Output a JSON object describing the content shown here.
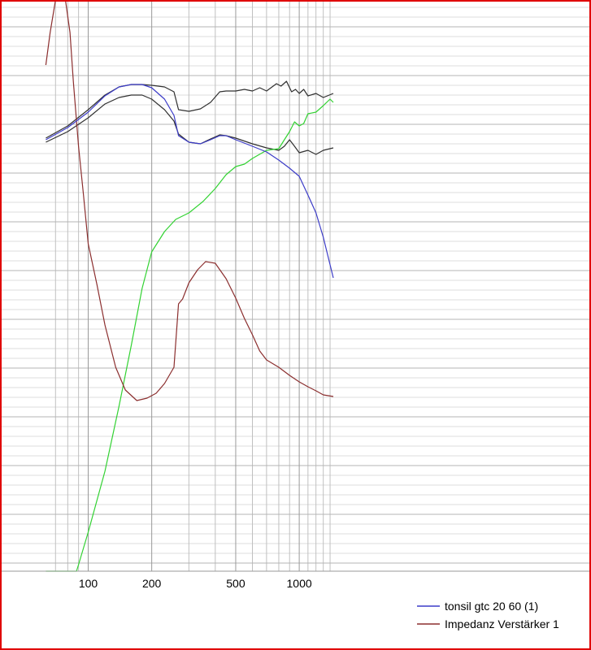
{
  "chart_data": {
    "type": "line",
    "title": "",
    "xlabel": "",
    "ylabel": "",
    "x_scale": "log",
    "xlim": [
      63,
      1450
    ],
    "x_ticks": [
      100,
      200,
      500,
      1000
    ],
    "x_tick_labels": [
      "100",
      "200",
      "500",
      "1000"
    ],
    "grid": true,
    "legend_position": "bottom-right",
    "colors": {
      "frame": "#e00000",
      "grid": "#c0c0c0",
      "blue": "#3c3cc8",
      "darkred": "#8b2e2e",
      "green": "#32d232",
      "black": "#303030"
    },
    "legend": [
      {
        "name": "tonsil gtc 20 60 (1)",
        "color": "#3c3cc8"
      },
      {
        "name": "Impedanz Verstärker 1",
        "color": "#8b2e2e"
      }
    ],
    "series": [
      {
        "name": "tonsil gtc 20 60 (1)",
        "color": "#3c3cc8",
        "points": [
          [
            63,
            172
          ],
          [
            80,
            157
          ],
          [
            100,
            138
          ],
          [
            120,
            118
          ],
          [
            140,
            107
          ],
          [
            160,
            104
          ],
          [
            180,
            104
          ],
          [
            200,
            108
          ],
          [
            230,
            122
          ],
          [
            255,
            142
          ],
          [
            268,
            167
          ],
          [
            300,
            175
          ],
          [
            340,
            177
          ],
          [
            380,
            172
          ],
          [
            420,
            167
          ],
          [
            450,
            167
          ],
          [
            500,
            172
          ],
          [
            600,
            180
          ],
          [
            700,
            187
          ],
          [
            800,
            197
          ],
          [
            900,
            207
          ],
          [
            1000,
            217
          ],
          [
            1100,
            240
          ],
          [
            1200,
            262
          ],
          [
            1300,
            292
          ],
          [
            1450,
            342
          ]
        ]
      },
      {
        "name": "Impedanz Verstärker 1",
        "color": "#8b2e2e",
        "points": [
          [
            63,
            80
          ],
          [
            66,
            40
          ],
          [
            70,
            0
          ],
          [
            78,
            0
          ],
          [
            82,
            40
          ],
          [
            85,
            100
          ],
          [
            90,
            180
          ],
          [
            95,
            240
          ],
          [
            100,
            300
          ],
          [
            110,
            350
          ],
          [
            120,
            400
          ],
          [
            135,
            452
          ],
          [
            150,
            480
          ],
          [
            170,
            493
          ],
          [
            190,
            490
          ],
          [
            210,
            484
          ],
          [
            230,
            472
          ],
          [
            255,
            452
          ],
          [
            268,
            374
          ],
          [
            280,
            368
          ],
          [
            300,
            348
          ],
          [
            330,
            332
          ],
          [
            360,
            322
          ],
          [
            400,
            324
          ],
          [
            450,
            343
          ],
          [
            500,
            367
          ],
          [
            550,
            392
          ],
          [
            600,
            412
          ],
          [
            650,
            432
          ],
          [
            700,
            443
          ],
          [
            800,
            452
          ],
          [
            900,
            462
          ],
          [
            1000,
            470
          ],
          [
            1100,
            476
          ],
          [
            1200,
            481
          ],
          [
            1300,
            486
          ],
          [
            1450,
            488
          ]
        ]
      },
      {
        "name": "",
        "color": "#32d232",
        "points": [
          [
            63,
            703
          ],
          [
            88,
            703
          ],
          [
            90,
            695
          ],
          [
            100,
            655
          ],
          [
            120,
            580
          ],
          [
            140,
            500
          ],
          [
            160,
            425
          ],
          [
            180,
            355
          ],
          [
            200,
            310
          ],
          [
            230,
            285
          ],
          [
            260,
            270
          ],
          [
            300,
            262
          ],
          [
            350,
            248
          ],
          [
            400,
            232
          ],
          [
            450,
            215
          ],
          [
            500,
            205
          ],
          [
            550,
            202
          ],
          [
            600,
            195
          ],
          [
            700,
            185
          ],
          [
            800,
            183
          ],
          [
            850,
            172
          ],
          [
            900,
            162
          ],
          [
            950,
            150
          ],
          [
            1000,
            155
          ],
          [
            1050,
            152
          ],
          [
            1100,
            140
          ],
          [
            1200,
            138
          ],
          [
            1300,
            130
          ],
          [
            1400,
            122
          ],
          [
            1450,
            126
          ]
        ]
      },
      {
        "name": "",
        "color": "#303030",
        "points": [
          [
            63,
            170
          ],
          [
            80,
            155
          ],
          [
            100,
            135
          ],
          [
            120,
            117
          ],
          [
            140,
            107
          ],
          [
            160,
            104
          ],
          [
            180,
            104
          ],
          [
            200,
            105
          ],
          [
            230,
            107
          ],
          [
            255,
            113
          ],
          [
            268,
            135
          ],
          [
            300,
            137
          ],
          [
            340,
            134
          ],
          [
            380,
            126
          ],
          [
            420,
            113
          ],
          [
            450,
            112
          ],
          [
            500,
            112
          ],
          [
            550,
            110
          ],
          [
            600,
            112
          ],
          [
            650,
            108
          ],
          [
            700,
            112
          ],
          [
            780,
            103
          ],
          [
            820,
            106
          ],
          [
            870,
            100
          ],
          [
            920,
            113
          ],
          [
            960,
            110
          ],
          [
            1000,
            115
          ],
          [
            1050,
            110
          ],
          [
            1100,
            118
          ],
          [
            1200,
            115
          ],
          [
            1300,
            120
          ],
          [
            1450,
            115
          ]
        ]
      },
      {
        "name": "",
        "color": "#303030",
        "points": [
          [
            63,
            175
          ],
          [
            80,
            162
          ],
          [
            100,
            145
          ],
          [
            120,
            128
          ],
          [
            140,
            120
          ],
          [
            160,
            117
          ],
          [
            180,
            117
          ],
          [
            200,
            122
          ],
          [
            230,
            135
          ],
          [
            255,
            149
          ],
          [
            268,
            165
          ],
          [
            300,
            175
          ],
          [
            340,
            177
          ],
          [
            380,
            171
          ],
          [
            420,
            166
          ],
          [
            450,
            167
          ],
          [
            500,
            170
          ],
          [
            600,
            177
          ],
          [
            700,
            182
          ],
          [
            800,
            185
          ],
          [
            850,
            180
          ],
          [
            900,
            172
          ],
          [
            950,
            180
          ],
          [
            1000,
            188
          ],
          [
            1100,
            185
          ],
          [
            1200,
            190
          ],
          [
            1300,
            185
          ],
          [
            1450,
            182
          ]
        ]
      }
    ]
  }
}
